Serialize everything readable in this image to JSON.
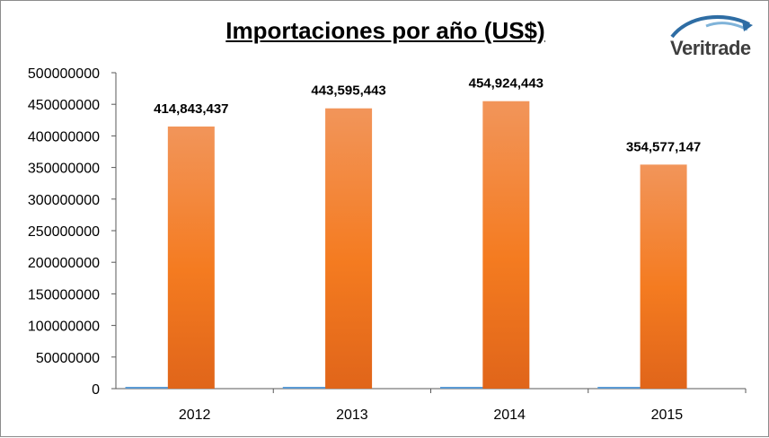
{
  "logo": {
    "text": "Veritrade"
  },
  "colors": {
    "bar": "#f47b20",
    "bar_light": "#f2955a",
    "bar_dark": "#e0651a",
    "small_bar": "#5b9bd5",
    "axis": "#595959"
  },
  "chart_data": {
    "type": "bar",
    "title": "Importaciones por año (US$)",
    "xlabel": "",
    "ylabel": "",
    "categories": [
      "2012",
      "2013",
      "2014",
      "2015"
    ],
    "values": [
      414843437,
      443595443,
      454924443,
      354577147
    ],
    "data_labels": [
      "414,843,437",
      "443,595,443",
      "454,924,443",
      "354,577,147"
    ],
    "secondary_values": [
      0,
      0,
      0,
      0
    ],
    "ylim": [
      0,
      500000000
    ],
    "yticks": [
      "0",
      "50000000",
      "100000000",
      "150000000",
      "200000000",
      "250000000",
      "300000000",
      "350000000",
      "400000000",
      "450000000",
      "500000000"
    ],
    "grid": false,
    "legend": "none"
  }
}
